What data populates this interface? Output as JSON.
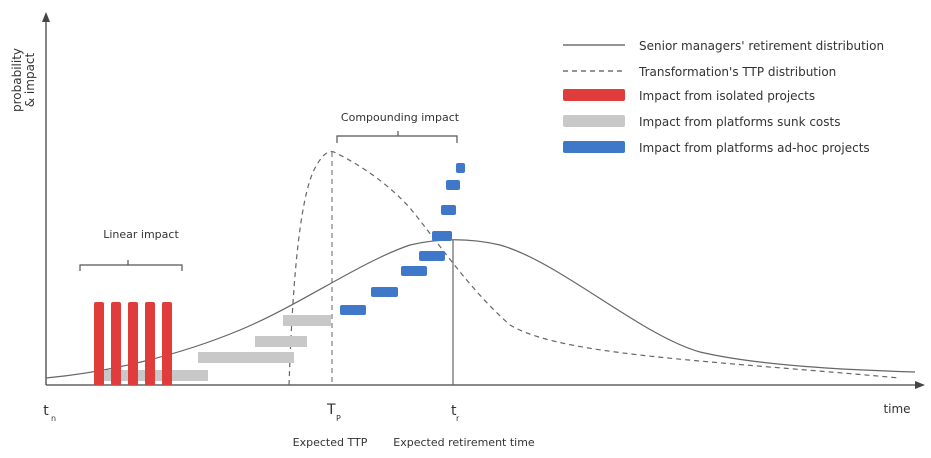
{
  "axes": {
    "y_label_line1": "probability",
    "y_label_line2": "& impact",
    "x_label": "time",
    "t_n": "t",
    "t_n_sub": "n",
    "T_p": "T",
    "T_p_sub": "P",
    "t_r": "t",
    "t_r_sub": "r"
  },
  "annotations": {
    "linear_impact": "Linear impact",
    "compounding_impact": "Compounding impact",
    "expected_ttp": "Expected TTP",
    "expected_retirement": "Expected retirement time"
  },
  "legend": [
    {
      "label": "Senior managers' retirement distribution",
      "style": "solid-line",
      "color": "#555555"
    },
    {
      "label": "Transformation's TTP distribution",
      "style": "dashed-line",
      "color": "#555555"
    },
    {
      "label": "Impact from isolated projects",
      "style": "bar",
      "color": "#e03c3c"
    },
    {
      "label": "Impact from platforms sunk costs",
      "style": "bar",
      "color": "#c8c8c8"
    },
    {
      "label": "Impact from platforms ad-hoc projects",
      "style": "bar",
      "color": "#3f78c9"
    }
  ],
  "colors": {
    "red": "#e03c3c",
    "gray": "#c8c8c8",
    "blue": "#3f78c9",
    "line": "#555555"
  }
}
